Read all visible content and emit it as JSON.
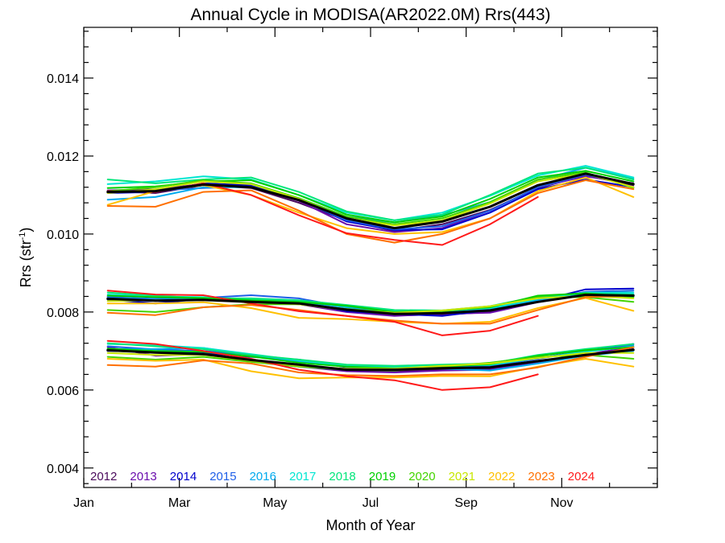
{
  "chart_data": {
    "type": "line",
    "title": "Annual Cycle in MODISA(AR2022.0M) Rrs(443)",
    "xlabel": "Month of Year",
    "ylabel": "Rrs (str",
    "ylabel_superscript": "-1",
    "ylabel_suffix": ")",
    "xlim": [
      0,
      12
    ],
    "ylim": [
      0.0035,
      0.0153
    ],
    "x_ticks": [
      {
        "value": 0,
        "label": "Jan"
      },
      {
        "value": 2,
        "label": "Mar"
      },
      {
        "value": 4,
        "label": "May"
      },
      {
        "value": 6,
        "label": "Jul"
      },
      {
        "value": 8,
        "label": "Sep"
      },
      {
        "value": 10,
        "label": "Nov"
      }
    ],
    "y_ticks": [
      {
        "value": 0.004,
        "label": "0.004"
      },
      {
        "value": 0.006,
        "label": "0.006"
      },
      {
        "value": 0.008,
        "label": "0.008"
      },
      {
        "value": 0.01,
        "label": "0.010"
      },
      {
        "value": 0.012,
        "label": "0.012"
      },
      {
        "value": 0.014,
        "label": "0.014"
      }
    ],
    "grid": false,
    "legend_position": "bottom-left",
    "mean": {
      "color": "#000000",
      "upper": [
        0.01108,
        0.0111,
        0.01127,
        0.0112,
        0.01087,
        0.0104,
        0.01015,
        0.01032,
        0.0107,
        0.01125,
        0.01155,
        0.01128
      ],
      "middle": [
        0.00834,
        0.00829,
        0.00831,
        0.00826,
        0.00822,
        0.00806,
        0.00795,
        0.00797,
        0.00804,
        0.00826,
        0.00844,
        0.00842
      ],
      "lower": [
        0.00702,
        0.00696,
        0.00692,
        0.00677,
        0.00665,
        0.00652,
        0.00652,
        0.00656,
        0.00658,
        0.00674,
        0.0069,
        0.00703
      ]
    },
    "series": [
      {
        "name": "2012",
        "color": "#4a0a5c",
        "upper": [
          0.0111,
          0.01105,
          0.01125,
          0.01118,
          0.0108,
          0.01035,
          0.01008,
          0.01025,
          0.01062,
          0.01118,
          0.0115,
          0.01125
        ],
        "middle": [
          0.00835,
          0.0083,
          0.00833,
          0.00826,
          0.00821,
          0.00805,
          0.00792,
          0.00793,
          0.008,
          0.00826,
          0.00844,
          0.00843
        ],
        "lower": [
          0.00705,
          0.00697,
          0.00692,
          0.00676,
          0.00663,
          0.0065,
          0.00648,
          0.00652,
          0.00655,
          0.00672,
          0.0069,
          0.00705
        ]
      },
      {
        "name": "2013",
        "color": "#6a0dad",
        "upper": [
          0.01112,
          0.01115,
          0.01128,
          0.0112,
          0.01085,
          0.01025,
          0.01005,
          0.01015,
          0.0106,
          0.0112,
          0.01148,
          0.0113
        ],
        "middle": [
          0.0084,
          0.00828,
          0.00832,
          0.00828,
          0.0082,
          0.008,
          0.0079,
          0.00795,
          0.00798,
          0.00825,
          0.00845,
          0.00845
        ],
        "lower": [
          0.0071,
          0.00688,
          0.00692,
          0.00674,
          0.0066,
          0.00648,
          0.00645,
          0.0065,
          0.00652,
          0.00672,
          0.00692,
          0.0071
        ]
      },
      {
        "name": "2014",
        "color": "#0000cd",
        "upper": [
          0.01105,
          0.01108,
          0.0113,
          0.01125,
          0.0109,
          0.01032,
          0.0101,
          0.01012,
          0.01055,
          0.01115,
          0.0114,
          0.0112
        ],
        "middle": [
          0.00832,
          0.00822,
          0.00834,
          0.00832,
          0.00828,
          0.00802,
          0.00795,
          0.0079,
          0.00805,
          0.00828,
          0.00858,
          0.0086
        ],
        "lower": [
          0.007,
          0.00698,
          0.00695,
          0.00685,
          0.00678,
          0.00658,
          0.00655,
          0.00658,
          0.0066,
          0.00682,
          0.007,
          0.00718
        ]
      },
      {
        "name": "2015",
        "color": "#1e5fe8",
        "upper": [
          0.01108,
          0.01112,
          0.01118,
          0.01122,
          0.01088,
          0.01035,
          0.01012,
          0.0102,
          0.0106,
          0.0112,
          0.01152,
          0.01128
        ],
        "middle": [
          0.00838,
          0.00834,
          0.00836,
          0.00843,
          0.00835,
          0.00812,
          0.00798,
          0.008,
          0.00808,
          0.0083,
          0.00852,
          0.00855
        ],
        "lower": [
          0.00712,
          0.00704,
          0.007,
          0.0069,
          0.00676,
          0.0066,
          0.00658,
          0.0066,
          0.00662,
          0.0068,
          0.007,
          0.00715
        ]
      },
      {
        "name": "2016",
        "color": "#00aaee",
        "upper": [
          0.01088,
          0.01095,
          0.0112,
          0.0112,
          0.01092,
          0.01045,
          0.0103,
          0.01048,
          0.01082,
          0.01138,
          0.0117,
          0.01142
        ],
        "middle": [
          0.00836,
          0.00832,
          0.00833,
          0.0083,
          0.00826,
          0.00812,
          0.00802,
          0.008,
          0.00806,
          0.0083,
          0.00846,
          0.00846
        ],
        "lower": [
          0.00705,
          0.00705,
          0.00708,
          0.0069,
          0.00672,
          0.0066,
          0.00658,
          0.00655,
          0.0065,
          0.00668,
          0.00688,
          0.007
        ]
      },
      {
        "name": "2017",
        "color": "#00e6d2",
        "upper": [
          0.01128,
          0.01135,
          0.01148,
          0.0114,
          0.011,
          0.01055,
          0.01035,
          0.01055,
          0.01098,
          0.0115,
          0.01175,
          0.01145
        ],
        "middle": [
          0.00845,
          0.0084,
          0.00838,
          0.00832,
          0.00828,
          0.00815,
          0.00804,
          0.00802,
          0.0081,
          0.00834,
          0.0085,
          0.0085
        ],
        "lower": [
          0.00718,
          0.00715,
          0.00708,
          0.00692,
          0.00676,
          0.00662,
          0.0066,
          0.00662,
          0.00664,
          0.00682,
          0.00698,
          0.00712
        ]
      },
      {
        "name": "2018",
        "color": "#00e67a",
        "upper": [
          0.0114,
          0.0113,
          0.0114,
          0.01145,
          0.01108,
          0.01058,
          0.01035,
          0.0105,
          0.011,
          0.01155,
          0.0117,
          0.0114
        ],
        "middle": [
          0.0085,
          0.00842,
          0.00835,
          0.00835,
          0.0083,
          0.00818,
          0.00805,
          0.00804,
          0.00815,
          0.0084,
          0.00848,
          0.00845
        ],
        "lower": [
          0.0072,
          0.00712,
          0.00705,
          0.0069,
          0.00678,
          0.00665,
          0.00662,
          0.00665,
          0.00668,
          0.0069,
          0.00705,
          0.00718
        ]
      },
      {
        "name": "2019",
        "color": "#00d000",
        "upper": [
          0.01118,
          0.01122,
          0.01135,
          0.01138,
          0.011,
          0.0105,
          0.0103,
          0.01045,
          0.0109,
          0.01145,
          0.01162,
          0.01135
        ],
        "middle": [
          0.00842,
          0.00838,
          0.00836,
          0.0083,
          0.00826,
          0.00816,
          0.008,
          0.00803,
          0.00812,
          0.00842,
          0.00848,
          0.00838
        ],
        "lower": [
          0.00706,
          0.007,
          0.00698,
          0.00686,
          0.0067,
          0.0066,
          0.00656,
          0.0066,
          0.00666,
          0.00688,
          0.00702,
          0.0071
        ]
      },
      {
        "name": "2020",
        "color": "#44d400",
        "upper": [
          0.0111,
          0.0112,
          0.01138,
          0.0113,
          0.01092,
          0.01045,
          0.01025,
          0.0104,
          0.01082,
          0.0114,
          0.01158,
          0.01118
        ],
        "middle": [
          0.00805,
          0.008,
          0.00812,
          0.0082,
          0.0082,
          0.00808,
          0.00798,
          0.00802,
          0.00814,
          0.00838,
          0.00838,
          0.00826
        ],
        "lower": [
          0.00685,
          0.00678,
          0.00685,
          0.00672,
          0.0066,
          0.00652,
          0.0065,
          0.0066,
          0.0067,
          0.00685,
          0.0069,
          0.0068
        ]
      },
      {
        "name": "2021",
        "color": "#c8e600",
        "upper": [
          0.01105,
          0.01115,
          0.01135,
          0.01128,
          0.0109,
          0.0104,
          0.01022,
          0.01035,
          0.01078,
          0.01135,
          0.01155,
          0.0112
        ],
        "middle": [
          0.00828,
          0.0083,
          0.00832,
          0.00826,
          0.0082,
          0.00805,
          0.00798,
          0.00804,
          0.00815,
          0.00835,
          0.00842,
          0.00835
        ],
        "lower": [
          0.00695,
          0.0069,
          0.0069,
          0.00675,
          0.00662,
          0.00655,
          0.00655,
          0.00662,
          0.00668,
          0.00682,
          0.00695,
          0.00695
        ]
      },
      {
        "name": "2022",
        "color": "#ffc000",
        "upper": [
          0.01075,
          0.0111,
          0.01125,
          0.011,
          0.01055,
          0.01015,
          0.01,
          0.01005,
          0.0104,
          0.0111,
          0.01145,
          0.01095
        ],
        "middle": [
          0.00822,
          0.00822,
          0.00825,
          0.0081,
          0.00785,
          0.00782,
          0.00775,
          0.0077,
          0.00775,
          0.0081,
          0.00836,
          0.00803
        ],
        "lower": [
          0.0068,
          0.00675,
          0.00678,
          0.00648,
          0.0063,
          0.00632,
          0.00632,
          0.00636,
          0.00635,
          0.0066,
          0.0068,
          0.0066
        ]
      },
      {
        "name": "2023",
        "color": "#ff7000",
        "upper": [
          0.01072,
          0.0107,
          0.01108,
          0.01112,
          0.0106,
          0.01,
          0.00978,
          0.01,
          0.0104,
          0.01105,
          0.01138,
          0.01115
        ],
        "middle": [
          0.00798,
          0.00792,
          0.00812,
          0.00818,
          0.00805,
          0.0079,
          0.00778,
          0.0077,
          0.0077,
          0.00805,
          0.00838,
          0.00842
        ],
        "lower": [
          0.00664,
          0.0066,
          0.00676,
          0.00668,
          0.00645,
          0.00638,
          0.00636,
          0.0064,
          0.0064,
          0.00658,
          0.00685,
          0.0071
        ]
      },
      {
        "name": "2024",
        "color": "#ff1a1a",
        "upper": [
          0.0111,
          0.01108,
          0.0113,
          0.011,
          0.01048,
          0.01002,
          0.00985,
          0.00972,
          0.01025,
          0.01095,
          null,
          null
        ],
        "middle": [
          0.00855,
          0.00845,
          0.00843,
          0.00822,
          0.00802,
          0.0079,
          0.00775,
          0.0074,
          0.00752,
          0.0079,
          null,
          null
        ],
        "lower": [
          0.00726,
          0.00718,
          0.007,
          0.0068,
          0.00652,
          0.00635,
          0.00625,
          0.006,
          0.00607,
          0.0064,
          null,
          null
        ]
      }
    ]
  }
}
